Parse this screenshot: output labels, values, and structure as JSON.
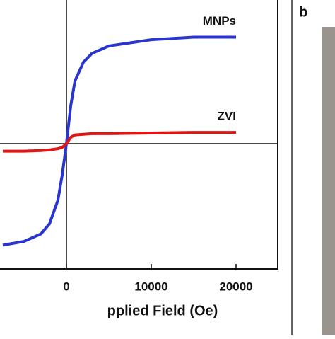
{
  "chart_data": {
    "type": "line",
    "panel_label": "b",
    "xlabel": "pplied Field  (Oe)",
    "xlim": [
      -25000,
      25000
    ],
    "xticks": [
      0,
      10000,
      20000
    ],
    "ylim": [
      -100,
      120
    ],
    "x": [
      -7500,
      -5000,
      -3000,
      -2000,
      -1000,
      -500,
      0,
      500,
      1000,
      2000,
      3000,
      5000,
      10000,
      15000,
      20000
    ],
    "series": [
      {
        "name": "MNPs",
        "color": "#2a35d0",
        "values": [
          -81,
          -78,
          -72,
          -64,
          -45,
          -25,
          0,
          30,
          50,
          65,
          72,
          78,
          83,
          85,
          85
        ]
      },
      {
        "name": "ZVI",
        "color": "#e01515",
        "values": [
          -6,
          -6,
          -5.5,
          -5,
          -4,
          -3,
          0,
          5,
          7,
          7.5,
          8,
          8,
          8.5,
          9,
          9
        ]
      }
    ]
  }
}
